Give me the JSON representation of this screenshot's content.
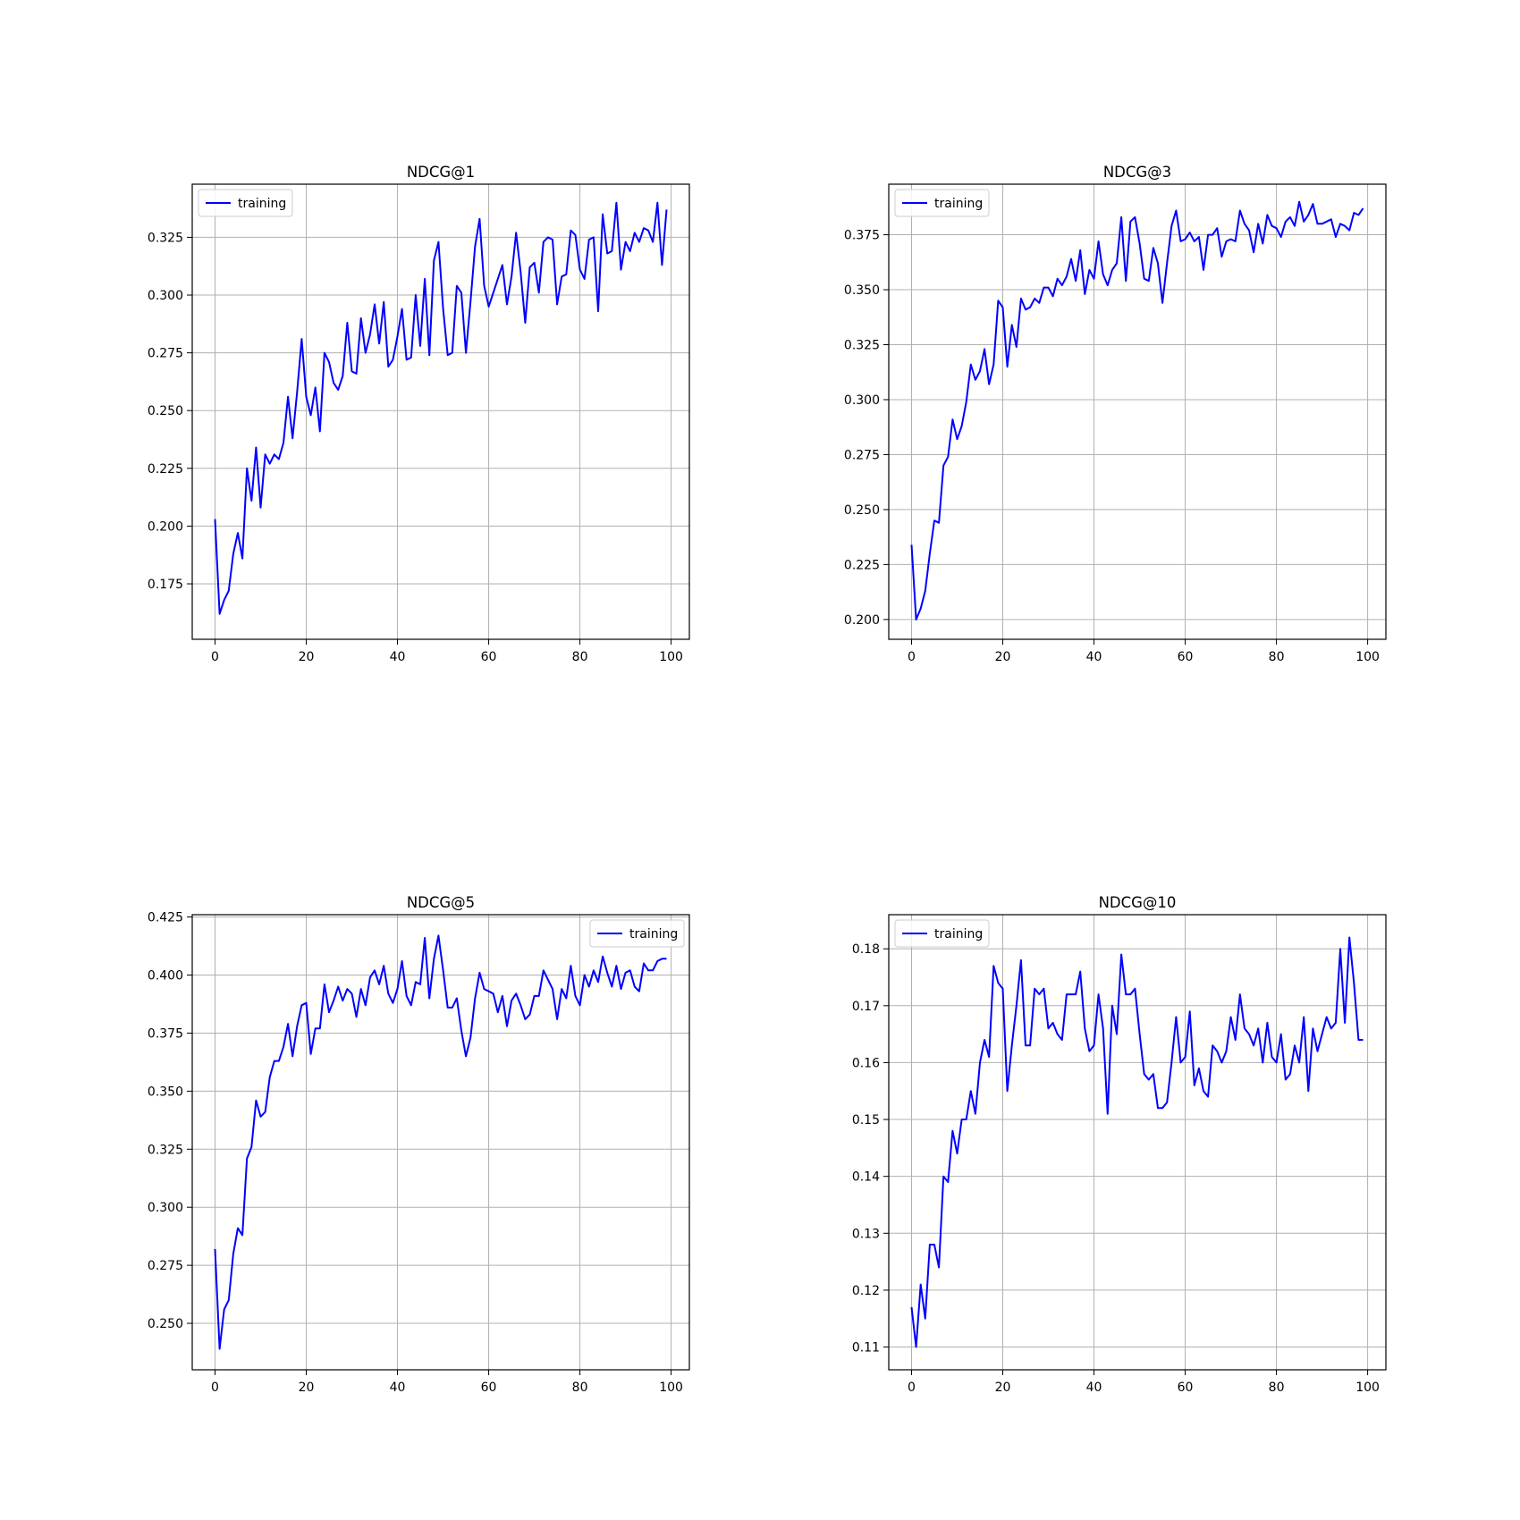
{
  "chart_data": [
    {
      "type": "line",
      "title": "NDCG@1",
      "xlabel": "",
      "ylabel": "",
      "xlim": [
        -5,
        104
      ],
      "ylim": [
        0.151,
        0.348
      ],
      "xticks": [
        "0",
        "20",
        "40",
        "60",
        "80",
        "100"
      ],
      "yticks": [
        "0.175",
        "0.200",
        "0.225",
        "0.250",
        "0.275",
        "0.300",
        "0.325"
      ],
      "grid": true,
      "legend": "upper-left",
      "series": [
        {
          "name": "training",
          "color": "#0000ff",
          "x_start": 0,
          "values": [
            0.203,
            0.162,
            0.168,
            0.172,
            0.188,
            0.197,
            0.186,
            0.225,
            0.211,
            0.234,
            0.208,
            0.231,
            0.227,
            0.231,
            0.229,
            0.236,
            0.256,
            0.238,
            0.258,
            0.281,
            0.256,
            0.248,
            0.26,
            0.241,
            0.275,
            0.271,
            0.262,
            0.259,
            0.265,
            0.288,
            0.267,
            0.266,
            0.29,
            0.275,
            0.283,
            0.296,
            0.279,
            0.297,
            0.269,
            0.272,
            0.282,
            0.294,
            0.272,
            0.273,
            0.3,
            0.278,
            0.307,
            0.274,
            0.315,
            0.323,
            0.294,
            0.274,
            0.275,
            0.304,
            0.301,
            0.275,
            0.297,
            0.321,
            0.333,
            0.304,
            0.295,
            0.301,
            0.307,
            0.313,
            0.296,
            0.308,
            0.327,
            0.31,
            0.288,
            0.312,
            0.314,
            0.301,
            0.323,
            0.325,
            0.324,
            0.296,
            0.308,
            0.309,
            0.328,
            0.326,
            0.311,
            0.307,
            0.324,
            0.325,
            0.293,
            0.335,
            0.318,
            0.319,
            0.34,
            0.311,
            0.323,
            0.319,
            0.327,
            0.323,
            0.329,
            0.328,
            0.323,
            0.34,
            0.313,
            0.337
          ]
        }
      ]
    },
    {
      "type": "line",
      "title": "NDCG@3",
      "xlabel": "",
      "ylabel": "",
      "xlim": [
        -5,
        104
      ],
      "ylim": [
        0.191,
        0.398
      ],
      "xticks": [
        "0",
        "20",
        "40",
        "60",
        "80",
        "100"
      ],
      "yticks": [
        "0.200",
        "0.225",
        "0.250",
        "0.275",
        "0.300",
        "0.325",
        "0.350",
        "0.375"
      ],
      "grid": true,
      "legend": "upper-left",
      "series": [
        {
          "name": "training",
          "color": "#0000ff",
          "x_start": 0,
          "values": [
            0.234,
            0.2,
            0.205,
            0.213,
            0.23,
            0.245,
            0.244,
            0.27,
            0.274,
            0.291,
            0.282,
            0.288,
            0.299,
            0.316,
            0.309,
            0.313,
            0.323,
            0.307,
            0.316,
            0.345,
            0.342,
            0.315,
            0.334,
            0.324,
            0.346,
            0.341,
            0.342,
            0.346,
            0.344,
            0.351,
            0.351,
            0.347,
            0.355,
            0.352,
            0.356,
            0.364,
            0.354,
            0.368,
            0.348,
            0.359,
            0.355,
            0.372,
            0.357,
            0.352,
            0.359,
            0.362,
            0.383,
            0.354,
            0.381,
            0.383,
            0.371,
            0.355,
            0.354,
            0.369,
            0.362,
            0.344,
            0.362,
            0.379,
            0.386,
            0.372,
            0.373,
            0.376,
            0.372,
            0.374,
            0.359,
            0.375,
            0.375,
            0.378,
            0.365,
            0.372,
            0.373,
            0.372,
            0.386,
            0.38,
            0.377,
            0.367,
            0.38,
            0.371,
            0.384,
            0.379,
            0.378,
            0.374,
            0.381,
            0.383,
            0.379,
            0.39,
            0.381,
            0.384,
            0.389,
            0.38,
            0.38,
            0.381,
            0.382,
            0.374,
            0.38,
            0.379,
            0.377,
            0.385,
            0.384,
            0.387
          ]
        }
      ]
    },
    {
      "type": "line",
      "title": "NDCG@5",
      "xlabel": "",
      "ylabel": "",
      "xlim": [
        -5,
        104
      ],
      "ylim": [
        0.23,
        0.426
      ],
      "xticks": [
        "0",
        "20",
        "40",
        "60",
        "80",
        "100"
      ],
      "yticks": [
        "0.250",
        "0.275",
        "0.300",
        "0.325",
        "0.350",
        "0.375",
        "0.400",
        "0.425"
      ],
      "grid": true,
      "legend": "upper-right",
      "series": [
        {
          "name": "training",
          "color": "#0000ff",
          "x_start": 0,
          "values": [
            0.282,
            0.239,
            0.256,
            0.26,
            0.28,
            0.291,
            0.288,
            0.321,
            0.326,
            0.346,
            0.339,
            0.341,
            0.356,
            0.363,
            0.363,
            0.369,
            0.379,
            0.365,
            0.378,
            0.387,
            0.388,
            0.366,
            0.377,
            0.377,
            0.396,
            0.384,
            0.389,
            0.395,
            0.389,
            0.394,
            0.392,
            0.382,
            0.394,
            0.387,
            0.399,
            0.402,
            0.396,
            0.404,
            0.392,
            0.388,
            0.394,
            0.406,
            0.391,
            0.387,
            0.397,
            0.396,
            0.416,
            0.39,
            0.407,
            0.417,
            0.402,
            0.386,
            0.386,
            0.39,
            0.376,
            0.365,
            0.373,
            0.39,
            0.401,
            0.394,
            0.393,
            0.392,
            0.384,
            0.391,
            0.378,
            0.389,
            0.392,
            0.387,
            0.381,
            0.383,
            0.391,
            0.391,
            0.402,
            0.398,
            0.394,
            0.381,
            0.394,
            0.39,
            0.404,
            0.391,
            0.387,
            0.4,
            0.395,
            0.402,
            0.397,
            0.408,
            0.401,
            0.395,
            0.404,
            0.394,
            0.401,
            0.402,
            0.395,
            0.393,
            0.405,
            0.402,
            0.402,
            0.406,
            0.407,
            0.407
          ]
        }
      ]
    },
    {
      "type": "line",
      "title": "NDCG@10",
      "xlabel": "",
      "ylabel": "",
      "xlim": [
        -5,
        104
      ],
      "ylim": [
        0.106,
        0.186
      ],
      "xticks": [
        "0",
        "20",
        "40",
        "60",
        "80",
        "100"
      ],
      "yticks": [
        "0.11",
        "0.12",
        "0.13",
        "0.14",
        "0.15",
        "0.16",
        "0.17",
        "0.18"
      ],
      "grid": true,
      "legend": "upper-left",
      "series": [
        {
          "name": "training",
          "color": "#0000ff",
          "x_start": 0,
          "values": [
            0.117,
            0.11,
            0.121,
            0.115,
            0.128,
            0.128,
            0.124,
            0.14,
            0.139,
            0.148,
            0.144,
            0.15,
            0.15,
            0.155,
            0.151,
            0.16,
            0.164,
            0.161,
            0.177,
            0.174,
            0.173,
            0.155,
            0.163,
            0.17,
            0.178,
            0.163,
            0.163,
            0.173,
            0.172,
            0.173,
            0.166,
            0.167,
            0.165,
            0.164,
            0.172,
            0.172,
            0.172,
            0.176,
            0.166,
            0.162,
            0.163,
            0.172,
            0.166,
            0.151,
            0.17,
            0.165,
            0.179,
            0.172,
            0.172,
            0.173,
            0.165,
            0.158,
            0.157,
            0.158,
            0.152,
            0.152,
            0.153,
            0.16,
            0.168,
            0.16,
            0.161,
            0.169,
            0.156,
            0.159,
            0.155,
            0.154,
            0.163,
            0.162,
            0.16,
            0.162,
            0.168,
            0.164,
            0.172,
            0.166,
            0.165,
            0.163,
            0.166,
            0.16,
            0.167,
            0.161,
            0.16,
            0.165,
            0.157,
            0.158,
            0.163,
            0.16,
            0.168,
            0.155,
            0.166,
            0.162,
            0.165,
            0.168,
            0.166,
            0.167,
            0.18,
            0.167,
            0.182,
            0.174,
            0.164,
            0.164
          ]
        }
      ]
    }
  ]
}
